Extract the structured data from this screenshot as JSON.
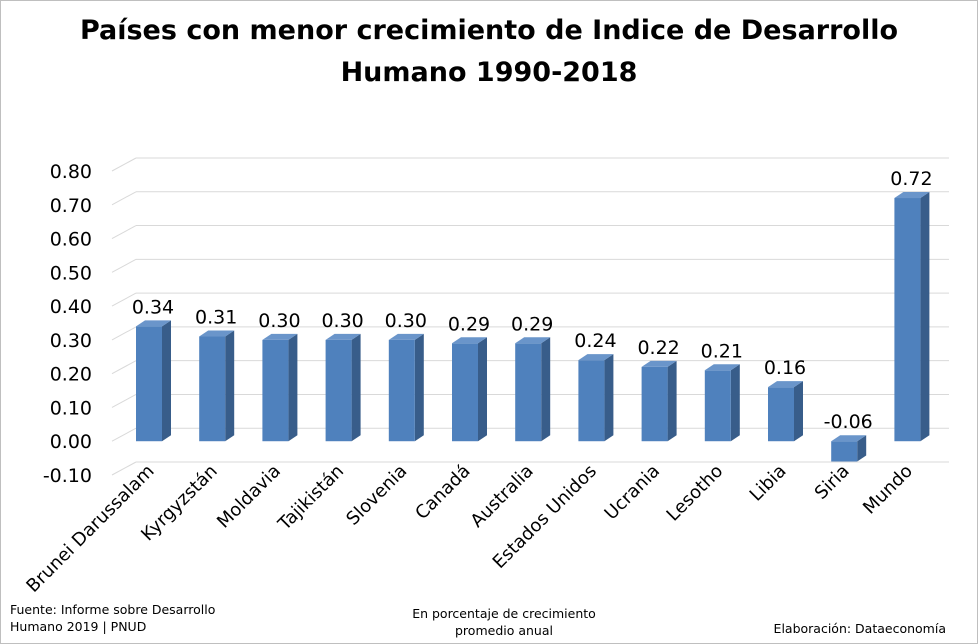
{
  "chart_data": {
    "type": "bar",
    "title": "Países con menor crecimiento de Indice de Desarrollo Humano 1990-2018",
    "title_lines": [
      "Países con menor crecimiento de Indice de Desarrollo",
      "Humano 1990-2018"
    ],
    "categories": [
      "Brunei Darussalam",
      "Kyrgyzstán",
      "Moldavia",
      "Tajikistán",
      "Slovenia",
      "Canadá",
      "Australia",
      "Estados Unidos",
      "Ucrania",
      "Lesotho",
      "Libia",
      "Siria",
      "Mundo"
    ],
    "values": [
      0.34,
      0.31,
      0.3,
      0.3,
      0.3,
      0.29,
      0.29,
      0.24,
      0.22,
      0.21,
      0.16,
      -0.06,
      0.72
    ],
    "value_labels": [
      "0.34",
      "0.31",
      "0.30",
      "0.30",
      "0.30",
      "0.29",
      "0.29",
      "0.24",
      "0.22",
      "0.21",
      "0.16",
      "-0.06",
      "0.72"
    ],
    "y_ticks": [
      "-0.10",
      "0.00",
      "0.10",
      "0.20",
      "0.30",
      "0.40",
      "0.50",
      "0.60",
      "0.70",
      "0.80"
    ],
    "ylim": [
      -0.1,
      0.8
    ],
    "xlabel": "",
    "ylabel": "",
    "grid": true,
    "legend": "none",
    "style": "3d-column",
    "bar_colors": {
      "front": "#4f81bd",
      "side": "#385d8a",
      "top": "#6a95ca"
    },
    "gridline_color": "#d9d9d9"
  },
  "footer": {
    "source_line1": "Fuente: Informe sobre Desarrollo",
    "source_line2": "Humano 2019 | PNUD",
    "unit_line1": "En porcentaje de crecimiento",
    "unit_line2": "promedio anual",
    "credit": "Elaboración: Dataeconomía"
  }
}
